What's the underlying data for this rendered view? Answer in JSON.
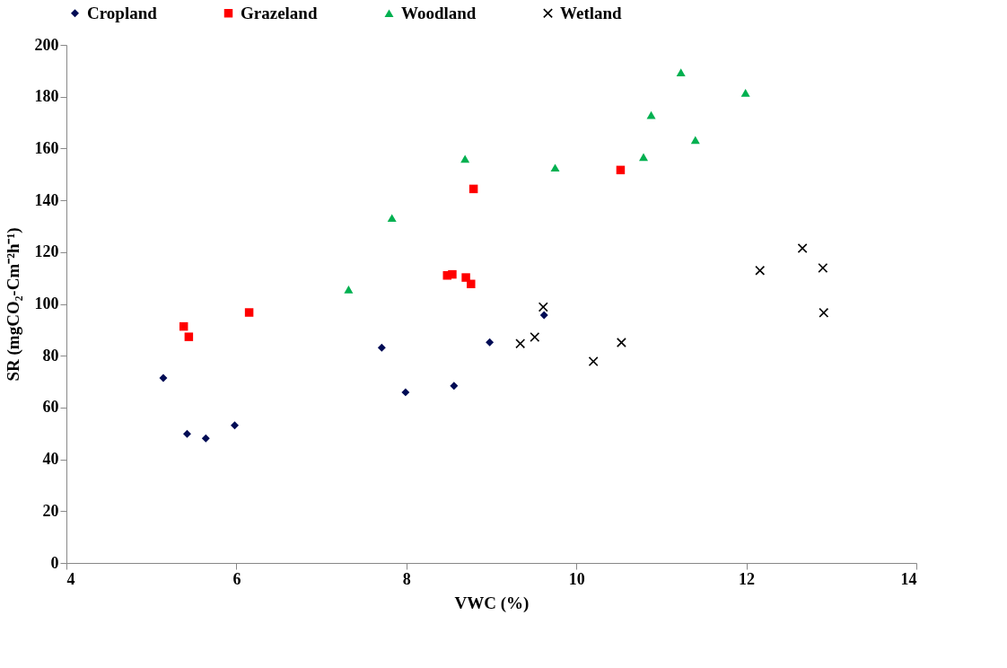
{
  "chart_data": {
    "type": "scatter",
    "xlabel": "VWC (%)",
    "ylabel": "SR (mgCO₂-Cm⁻²h⁻¹)",
    "xlim": [
      4,
      14
    ],
    "xticks": [
      4,
      6,
      8,
      10,
      12,
      14
    ],
    "ylim": [
      0,
      200
    ],
    "yticks": [
      0,
      20,
      40,
      60,
      80,
      100,
      120,
      140,
      160,
      180,
      200
    ],
    "grid": false,
    "legend": "top",
    "series": [
      {
        "name": "Cropland",
        "color": "#000c55",
        "marker": "diamond",
        "x": [
          5.14,
          5.42,
          5.64,
          5.98,
          7.71,
          7.99,
          8.56,
          8.98,
          9.62
        ],
        "values": [
          71.4,
          49.8,
          48.1,
          53.1,
          83.1,
          65.9,
          68.4,
          85.2,
          95.7
        ]
      },
      {
        "name": "Grazeland",
        "color": "#ff0000",
        "marker": "square",
        "x": [
          5.38,
          5.44,
          6.15,
          8.48,
          8.54,
          8.7,
          8.76,
          8.79,
          10.52
        ],
        "values": [
          91.3,
          87.3,
          96.7,
          111.0,
          111.4,
          110.2,
          107.7,
          144.4,
          151.7
        ]
      },
      {
        "name": "Woodland",
        "color": "#00b050",
        "marker": "triangle",
        "x": [
          7.32,
          7.83,
          8.69,
          9.75,
          10.79,
          10.88,
          11.23,
          11.4,
          11.99
        ],
        "values": [
          105.6,
          133.2,
          156.0,
          152.6,
          156.7,
          172.9,
          189.4,
          163.3,
          181.5
        ]
      },
      {
        "name": "Wetland",
        "color": "#000000",
        "marker": "cross",
        "x": [
          9.34,
          9.51,
          9.61,
          10.2,
          10.53,
          12.16,
          12.66,
          12.9,
          12.91
        ],
        "values": [
          84.7,
          87.2,
          98.8,
          77.8,
          85.1,
          112.9,
          121.5,
          113.9,
          96.6
        ]
      }
    ]
  }
}
